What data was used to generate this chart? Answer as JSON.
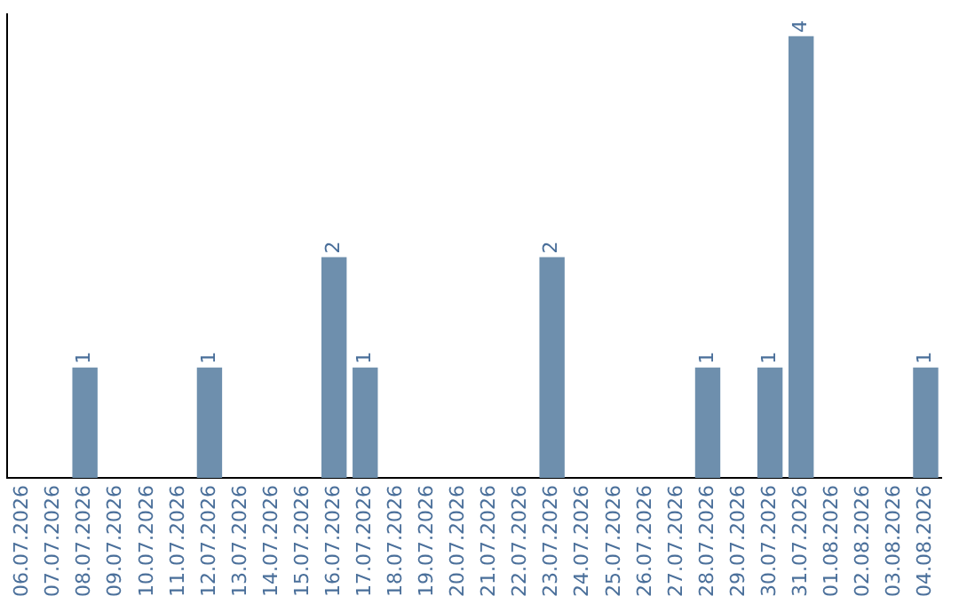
{
  "chart_data": {
    "type": "bar",
    "categories": [
      "06.07.2026",
      "07.07.2026",
      "08.07.2026",
      "09.07.2026",
      "10.07.2026",
      "11.07.2026",
      "12.07.2026",
      "13.07.2026",
      "14.07.2026",
      "15.07.2026",
      "16.07.2026",
      "17.07.2026",
      "18.07.2026",
      "19.07.2026",
      "20.07.2026",
      "21.07.2026",
      "22.07.2026",
      "23.07.2026",
      "24.07.2026",
      "25.07.2026",
      "26.07.2026",
      "27.07.2026",
      "28.07.2026",
      "29.07.2026",
      "30.07.2026",
      "31.07.2026",
      "01.08.2026",
      "02.08.2026",
      "03.08.2026",
      "04.08.2026"
    ],
    "values": [
      0,
      0,
      1,
      0,
      0,
      0,
      1,
      0,
      0,
      0,
      2,
      1,
      0,
      0,
      0,
      0,
      0,
      2,
      0,
      0,
      0,
      0,
      1,
      0,
      1,
      4,
      0,
      0,
      0,
      1
    ],
    "value_labels": [
      null,
      null,
      "1",
      null,
      null,
      null,
      "1",
      null,
      null,
      null,
      "2",
      "1",
      null,
      null,
      null,
      null,
      null,
      "2",
      null,
      null,
      null,
      null,
      "1",
      null,
      "1",
      "4",
      null,
      null,
      null,
      "1"
    ],
    "color": "#6e8fad",
    "ylim": [
      0,
      4.2
    ],
    "tick_labels": "x",
    "grid": false,
    "legend": false
  }
}
